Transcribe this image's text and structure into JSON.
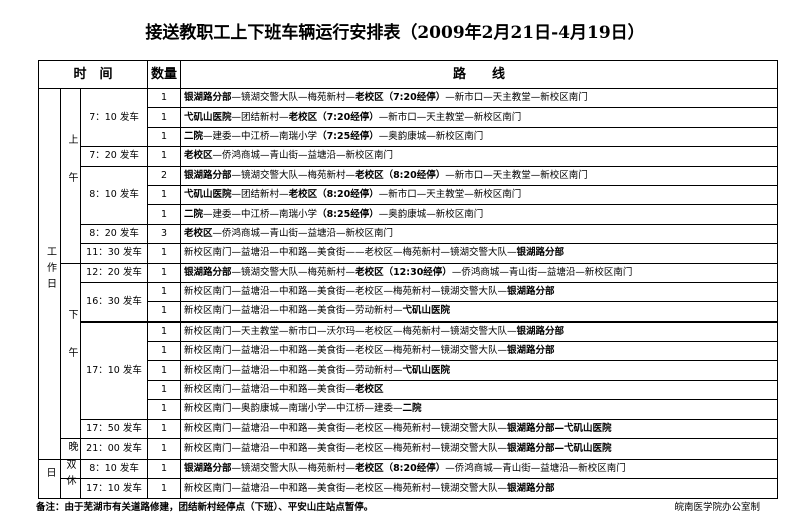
{
  "title": "接送教职工上下班车辆运行安排表（2009年2月21日-4月19日）",
  "header": {
    "time": "时　间",
    "count": "数量",
    "route": "路　　线"
  },
  "groups": {
    "workday": "工作日",
    "weekend": "双休日",
    "morning": "上午",
    "afternoon": "下午",
    "evening": "晚"
  },
  "rows": [
    {
      "time": "7：10 发车",
      "count": "1",
      "route": [
        {
          "t": "银湖路分部",
          "b": true
        },
        {
          "t": "—镜湖交警大队—梅苑新村—"
        },
        {
          "t": "老校区（7:20经停）",
          "b": true
        },
        {
          "t": "—新市口—天主教堂—新校区南门"
        }
      ]
    },
    {
      "time": "",
      "count": "1",
      "route": [
        {
          "t": "弋矶山医院",
          "b": true
        },
        {
          "t": "—团结新村—"
        },
        {
          "t": "老校区（7:20经停）",
          "b": true
        },
        {
          "t": "—新市口—天主教堂—新校区南门"
        }
      ]
    },
    {
      "time": "",
      "count": "1",
      "route": [
        {
          "t": "二院",
          "b": true
        },
        {
          "t": "—建委—中江桥—南瑞小学"
        },
        {
          "t": "（7:25经停）",
          "b": true
        },
        {
          "t": "—奥韵康城—新校区南门"
        }
      ]
    },
    {
      "time": "7：20 发车",
      "count": "1",
      "route": [
        {
          "t": "老校区",
          "b": true
        },
        {
          "t": "—侨鸿商城—青山街—益塘沿—新校区南门"
        }
      ]
    },
    {
      "time": "8：10 发车",
      "count": "2",
      "route": [
        {
          "t": "银湖路分部",
          "b": true
        },
        {
          "t": "—镜湖交警大队—梅苑新村—"
        },
        {
          "t": "老校区（8:20经停）",
          "b": true
        },
        {
          "t": "—新市口—天主教堂—新校区南门"
        }
      ]
    },
    {
      "time": "",
      "count": "1",
      "route": [
        {
          "t": "弋矶山医院",
          "b": true
        },
        {
          "t": "—团结新村—"
        },
        {
          "t": "老校区（8:20经停）",
          "b": true
        },
        {
          "t": "—新市口—天主教堂—新校区南门"
        }
      ]
    },
    {
      "time": "",
      "count": "1",
      "route": [
        {
          "t": "二院",
          "b": true
        },
        {
          "t": "—建委—中江桥—南瑞小学"
        },
        {
          "t": "（8:25经停）",
          "b": true
        },
        {
          "t": "—奥韵康城—新校区南门"
        }
      ]
    },
    {
      "time": "8：20 发车",
      "count": "3",
      "route": [
        {
          "t": "老校区",
          "b": true
        },
        {
          "t": "—侨鸿商城—青山街—益塘沿—新校区南门"
        }
      ]
    },
    {
      "time": "11：30 发车",
      "count": "1",
      "route": [
        {
          "t": "新校区南门—益塘沿—中和路—美食街——老校区—梅苑新村—镜湖交警大队—"
        },
        {
          "t": "银湖路分部",
          "b": true
        }
      ]
    },
    {
      "time": "12：20 发车",
      "count": "1",
      "route": [
        {
          "t": "银湖路分部",
          "b": true
        },
        {
          "t": "—镜湖交警大队—梅苑新村—"
        },
        {
          "t": "老校区（12:30经停）",
          "b": true
        },
        {
          "t": "—侨鸿商城—青山街—益塘沿—新校区南门"
        }
      ]
    },
    {
      "time": "16：30 发车",
      "count": "1",
      "route": [
        {
          "t": "新校区南门—益塘沿—中和路—美食街—老校区—梅苑新村—镜湖交警大队—"
        },
        {
          "t": "银湖路分部",
          "b": true
        }
      ]
    },
    {
      "time": "",
      "count": "1",
      "route": [
        {
          "t": "新校区南门—益塘沿—中和路—美食街—劳动新村—"
        },
        {
          "t": "弋矶山医院",
          "b": true
        }
      ]
    },
    {
      "time": "17：10 发车",
      "count": "1",
      "route": [
        {
          "t": "新校区南门—天主教堂—新市口—沃尔玛—老校区—梅苑新村—镜湖交警大队—"
        },
        {
          "t": "银湖路分部",
          "b": true
        }
      ]
    },
    {
      "time": "",
      "count": "1",
      "route": [
        {
          "t": "新校区南门—益塘沿—中和路—美食街—老校区—梅苑新村—镜湖交警大队—"
        },
        {
          "t": "银湖路分部",
          "b": true
        }
      ]
    },
    {
      "time": "",
      "count": "1",
      "route": [
        {
          "t": "新校区南门—益塘沿—中和路—美食街—劳动新村—"
        },
        {
          "t": "弋矶山医院",
          "b": true
        }
      ]
    },
    {
      "time": "",
      "count": "1",
      "route": [
        {
          "t": "新校区南门—益塘沿—中和路—美食街—"
        },
        {
          "t": "老校区",
          "b": true
        }
      ]
    },
    {
      "time": "",
      "count": "1",
      "route": [
        {
          "t": "新校区南门—奥韵康城—南瑞小学—中江桥—建委—"
        },
        {
          "t": "二院",
          "b": true
        }
      ]
    },
    {
      "time": "17：50 发车",
      "count": "1",
      "route": [
        {
          "t": "新校区南门—益塘沿—中和路—美食街—老校区—梅苑新村—镜湖交警大队—"
        },
        {
          "t": "银湖路分部—弋矶山医院",
          "b": true
        }
      ]
    },
    {
      "time": "21：00 发车",
      "count": "1",
      "route": [
        {
          "t": "新校区南门—益塘沿—中和路—美食街—老校区—梅苑新村—镜湖交警大队—"
        },
        {
          "t": "银湖路分部—弋矶山医院",
          "b": true
        }
      ]
    },
    {
      "time": "8：10 发车",
      "count": "1",
      "route": [
        {
          "t": "银湖路分部",
          "b": true
        },
        {
          "t": "—镜湖交警大队—梅苑新村—"
        },
        {
          "t": "老校区（8:20经停）",
          "b": true
        },
        {
          "t": "—侨鸿商城—青山街—益塘沿—新校区南门"
        }
      ]
    },
    {
      "time": "17：10 发车",
      "count": "1",
      "route": [
        {
          "t": "新校区南门—益塘沿—中和路—美食街—老校区—梅苑新村—镜湖交警大队—"
        },
        {
          "t": "银湖路分部",
          "b": true
        }
      ]
    }
  ],
  "note": "备注：由于芜湖市有关道路修建，团结新村经停点（下班）、平安山庄站点暂停。",
  "maker": "皖南医学院办公室制"
}
